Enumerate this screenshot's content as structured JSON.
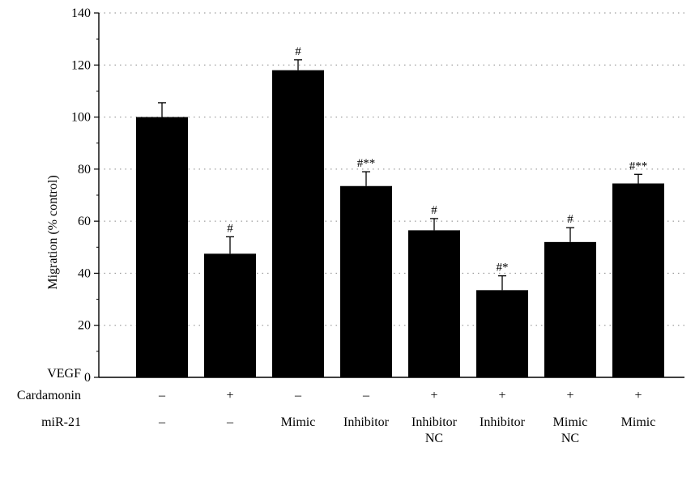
{
  "chart_data": {
    "type": "bar",
    "ylabel": "Migration (% control)",
    "ylim": [
      0,
      140
    ],
    "yticks": [
      0,
      20,
      40,
      60,
      80,
      100,
      120,
      140
    ],
    "grid": "horizontal-dotted",
    "bar_color": "#000000",
    "values": [
      100,
      47.5,
      118,
      73.5,
      56.5,
      33.5,
      52,
      74.5
    ],
    "errors": [
      5.5,
      6.5,
      4,
      5.5,
      4.5,
      5.5,
      5.5,
      3.5
    ],
    "annotations": [
      "",
      "#",
      "#",
      "#**",
      "#",
      "#*",
      "#",
      "#**"
    ],
    "conditions": [
      {
        "label": "VEGF",
        "values": [
          "+",
          "+",
          "+",
          "+",
          "+",
          "+",
          "+",
          "+"
        ]
      },
      {
        "label": "Cardamonin",
        "values": [
          "–",
          "+",
          "–",
          "–",
          "+",
          "+",
          "+",
          "+"
        ]
      },
      {
        "label": "miR-21",
        "values": [
          "–",
          "–",
          "Mimic",
          "Inhibitor",
          "Inhibitor\nNC",
          "Inhibitor",
          "Mimic\nNC",
          "Mimic"
        ]
      }
    ]
  }
}
